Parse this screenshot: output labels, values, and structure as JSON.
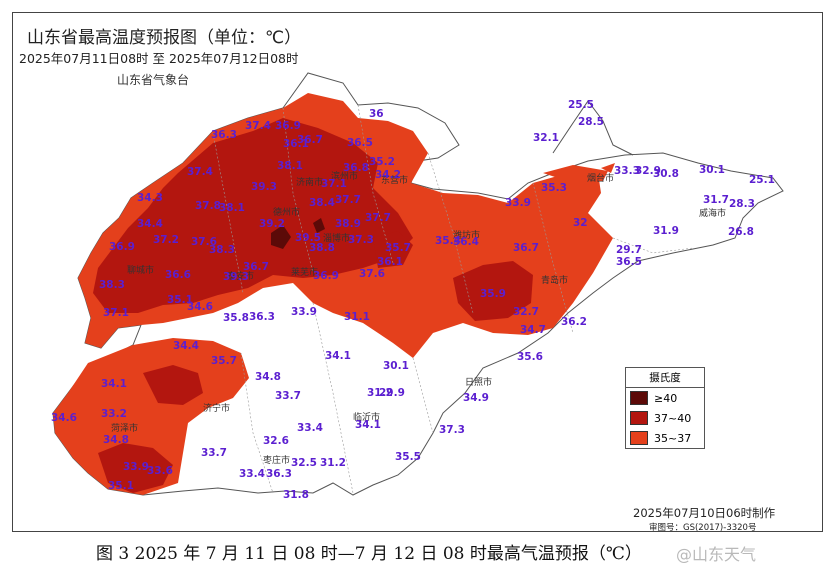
{
  "header": {
    "title": "山东省最高温度预报图（单位：℃）",
    "period": "2025年07月11日08时 至 2025年07月12日08时",
    "issuer": "山东省气象台"
  },
  "legend": {
    "title": "摄氏度",
    "items": [
      {
        "label": "≥40",
        "color": "#5c0a08"
      },
      {
        "label": "37~40",
        "color": "#b3160f"
      },
      {
        "label": "35~37",
        "color": "#e4401c"
      }
    ]
  },
  "issued": "2025年07月10日06时制作",
  "review_no": "审图号：GS(2017)-3320号",
  "caption": "图 3 2025 年 7 月 11 日 08 时—7 月 12 日 08 时最高气温预报（℃）",
  "watermark": "@山东天气",
  "colors": {
    "ge40": "#5c0a08",
    "r37_40": "#b3160f",
    "r35_37": "#e4401c",
    "below35": "#ffffff",
    "value_text": "#5b1fd0"
  },
  "cities": [
    "德州市",
    "聊城市",
    "济南市",
    "滨州市",
    "东营市",
    "淄博市",
    "潍坊市",
    "烟台市",
    "威海市",
    "青岛市",
    "日照市",
    "临沂市",
    "枣庄市",
    "济宁市",
    "泰安市",
    "菏泽市",
    "莱芜市"
  ],
  "values": [
    "25.5",
    "28.5",
    "32.1",
    "36.3",
    "37.4",
    "36.9",
    "36.1",
    "36.7",
    "36",
    "36.5",
    "35.2",
    "36.8",
    "34.2",
    "37.4",
    "38.1",
    "39.3",
    "37.1",
    "38.4",
    "37.7",
    "35.3",
    "33.3",
    "32.9",
    "30.8",
    "30.1",
    "25.1",
    "31.7",
    "28.3",
    "33.9",
    "34.3",
    "34.4",
    "37.8",
    "38.1",
    "39.2",
    "38.9",
    "37.7",
    "31.9",
    "26.8",
    "36.9",
    "37.2",
    "37.6",
    "38.3",
    "39.5",
    "38.8",
    "37.3",
    "36.1",
    "35.7",
    "35.4",
    "36.4",
    "36.7",
    "32",
    "29.7",
    "36.5",
    "38.3",
    "36.6",
    "39.3",
    "36.7",
    "36.9",
    "37.6",
    "35.9",
    "32.7",
    "36.2",
    "37.1",
    "35.1",
    "34.6",
    "35.8",
    "36.3",
    "33.9",
    "31.1",
    "34.7",
    "34.4",
    "34.8",
    "34.1",
    "30.1",
    "35.6",
    "35.7",
    "34.1",
    "33.7",
    "29.9",
    "34.9",
    "34.6",
    "33.2",
    "33.4",
    "34.1",
    "31.2",
    "37.3",
    "34.8",
    "33.7",
    "32.6",
    "32.5",
    "31.2",
    "35.5",
    "33.9",
    "33.4",
    "36.3",
    "35.1",
    "33.6",
    "31.8"
  ]
}
